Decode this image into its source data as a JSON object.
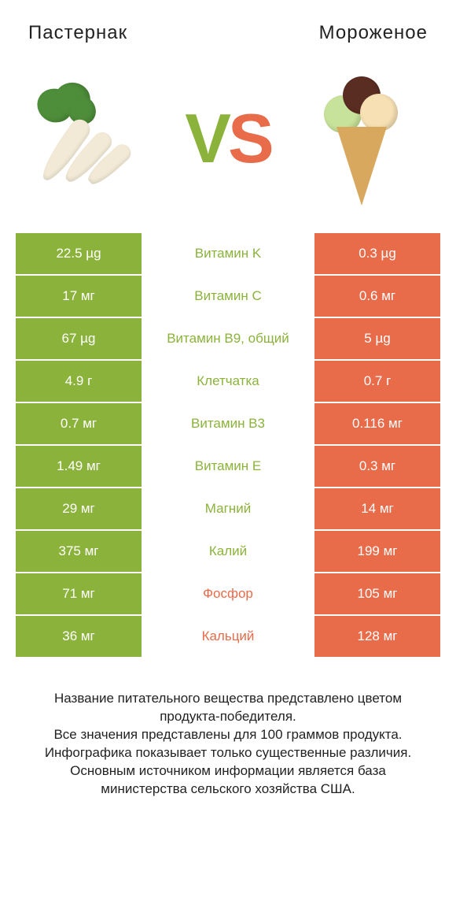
{
  "colors": {
    "left": "#8bb33b",
    "right": "#e86b4a",
    "row_bg": "#ffffff",
    "text_mid_default": "#333333"
  },
  "header": {
    "left_title": "Пастернак",
    "right_title": "Мороженое"
  },
  "vs": {
    "v": "V",
    "s": "S"
  },
  "rows": [
    {
      "left": "22.5 µg",
      "label": "Витамин K",
      "right": "0.3 µg",
      "winner": "left"
    },
    {
      "left": "17 мг",
      "label": "Витамин C",
      "right": "0.6 мг",
      "winner": "left"
    },
    {
      "left": "67 µg",
      "label": "Витамин B9, общий",
      "right": "5 µg",
      "winner": "left"
    },
    {
      "left": "4.9 г",
      "label": "Клетчатка",
      "right": "0.7 г",
      "winner": "left"
    },
    {
      "left": "0.7 мг",
      "label": "Витамин B3",
      "right": "0.116 мг",
      "winner": "left"
    },
    {
      "left": "1.49 мг",
      "label": "Витамин E",
      "right": "0.3 мг",
      "winner": "left"
    },
    {
      "left": "29 мг",
      "label": "Магний",
      "right": "14 мг",
      "winner": "left"
    },
    {
      "left": "375 мг",
      "label": "Калий",
      "right": "199 мг",
      "winner": "left"
    },
    {
      "left": "71 мг",
      "label": "Фосфор",
      "right": "105 мг",
      "winner": "right"
    },
    {
      "left": "36 мг",
      "label": "Кальций",
      "right": "128 мг",
      "winner": "right"
    }
  ],
  "footer": {
    "line1": "Название питательного вещества представлено цветом продукта-победителя.",
    "line2": "Все значения представлены для 100 граммов продукта.",
    "line3": "Инфографика показывает только существенные различия.",
    "line4": "Основным источником информации является база министерства сельского хозяйства США."
  }
}
